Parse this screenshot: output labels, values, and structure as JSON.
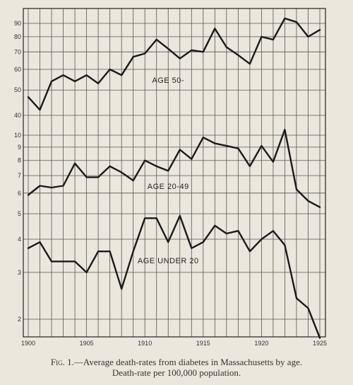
{
  "chart_data": {
    "type": "line",
    "title": "",
    "xlabel": "",
    "ylabel": "",
    "x": [
      1900,
      1901,
      1902,
      1903,
      1904,
      1905,
      1906,
      1907,
      1908,
      1909,
      1910,
      1911,
      1912,
      1913,
      1914,
      1915,
      1916,
      1917,
      1918,
      1919,
      1920,
      1921,
      1922,
      1923,
      1924,
      1925
    ],
    "x_ticks": [
      "1900",
      "1905",
      "1910",
      "1915",
      "1920",
      "1925"
    ],
    "y_scale": "log",
    "y_segments": [
      {
        "ticks": [
          40,
          50,
          60,
          70,
          80,
          90
        ]
      },
      {
        "ticks": [
          5,
          6,
          7,
          8,
          9,
          10
        ]
      },
      {
        "ticks": [
          2,
          3,
          4
        ]
      }
    ],
    "series": [
      {
        "name": "AGE 50-",
        "values": [
          47,
          42,
          54,
          57,
          54,
          57,
          53,
          60,
          57,
          67,
          69,
          78,
          72,
          66,
          71,
          70,
          86,
          73,
          68,
          63,
          80,
          78,
          94,
          91,
          80,
          85
        ]
      },
      {
        "name": "AGE 20-49",
        "values": [
          5.9,
          6.4,
          6.3,
          6.4,
          7.8,
          6.9,
          6.9,
          7.6,
          7.2,
          6.7,
          8.0,
          7.6,
          7.3,
          8.8,
          8.1,
          9.8,
          9.3,
          9.1,
          8.9,
          7.6,
          9.1,
          7.9,
          10.5,
          6.2,
          5.6,
          5.3
        ]
      },
      {
        "name": "AGE UNDER 20",
        "values": [
          3.7,
          3.9,
          3.3,
          3.3,
          3.3,
          3.0,
          3.6,
          3.6,
          2.6,
          3.6,
          4.8,
          4.8,
          3.9,
          4.9,
          3.7,
          3.9,
          4.5,
          4.2,
          4.3,
          3.6,
          4.0,
          4.3,
          3.8,
          2.4,
          2.2,
          1.7
        ]
      }
    ]
  },
  "caption": {
    "fig_label": "Fig. 1.",
    "line1": "—Average death-rates from diabetes in Massachusetts by age.",
    "line2": "Death-rate per 100,000 population."
  }
}
